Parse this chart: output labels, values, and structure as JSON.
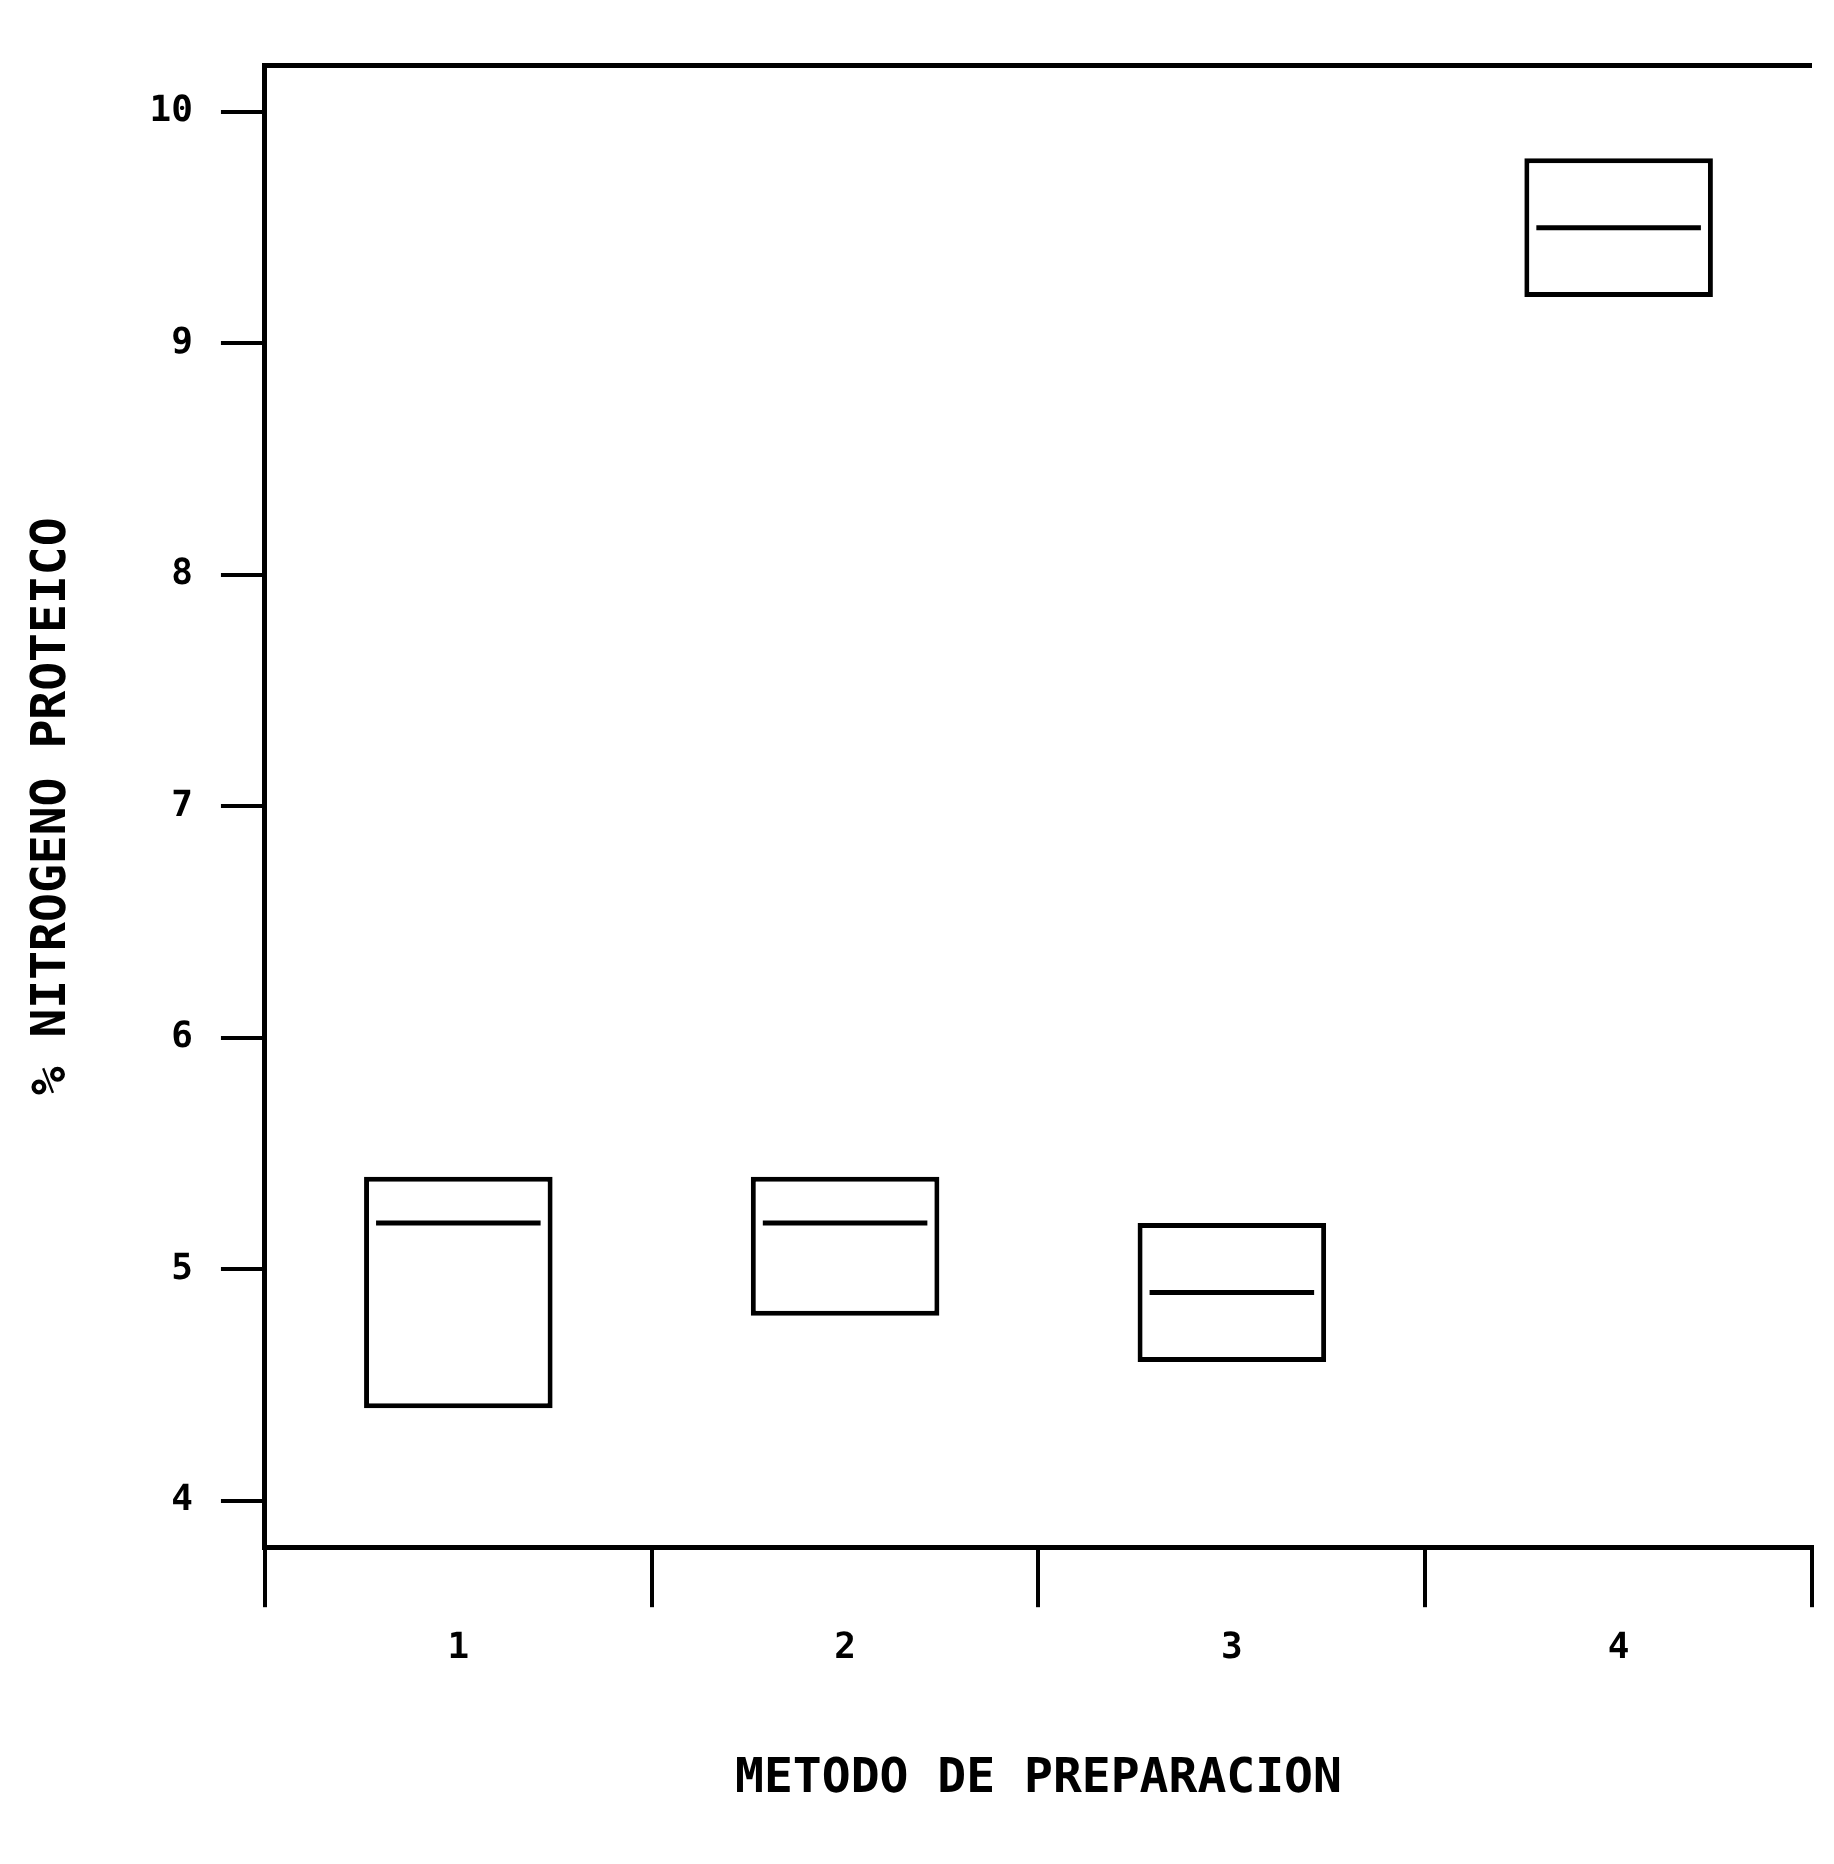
{
  "chart_data": {
    "type": "box",
    "xlabel": "METODO DE PREPARACION",
    "ylabel": "% NITROGENO PROTEICO",
    "categories": [
      "1",
      "2",
      "3",
      "4"
    ],
    "boxes": [
      {
        "low": 4.4,
        "q1": 4.4,
        "median": 5.2,
        "q3": 5.4,
        "high": 5.4
      },
      {
        "low": 4.8,
        "q1": 4.8,
        "median": 5.2,
        "q3": 5.4,
        "high": 5.4
      },
      {
        "low": 4.6,
        "q1": 4.6,
        "median": 4.9,
        "q3": 5.2,
        "high": 5.2
      },
      {
        "low": 9.2,
        "q1": 9.2,
        "median": 9.5,
        "q3": 9.8,
        "high": 9.8
      }
    ],
    "color": "#000000",
    "ylim": [
      3.8,
      10.2
    ],
    "yticks": [
      4,
      5,
      6,
      7,
      8,
      9,
      10
    ],
    "grid": false,
    "legend": false
  }
}
